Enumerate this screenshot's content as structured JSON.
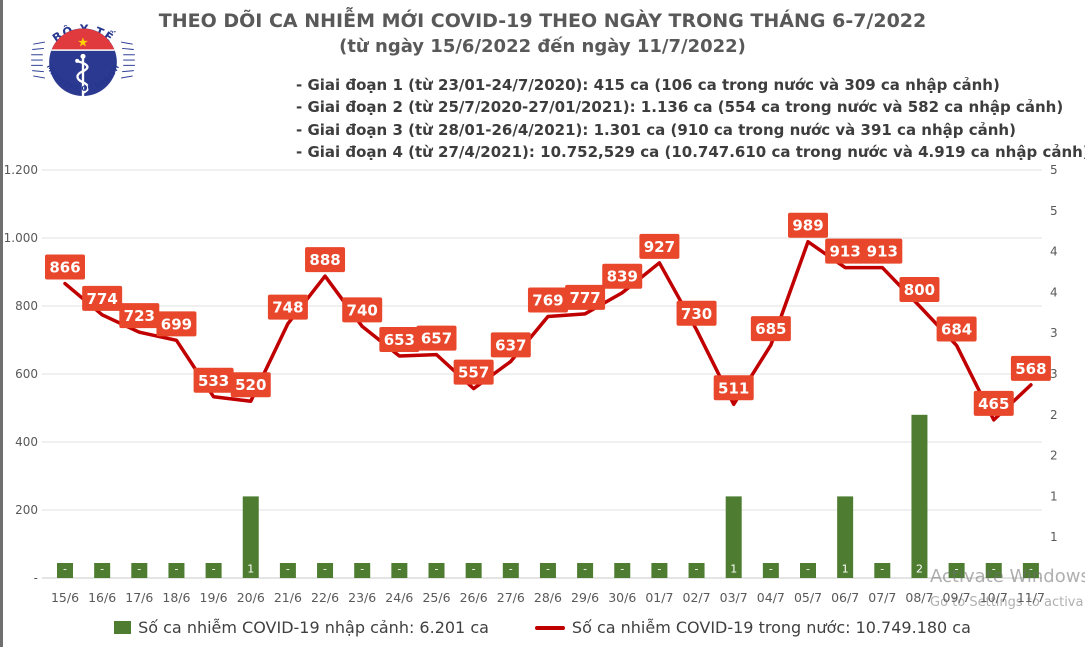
{
  "logo": {
    "top_text": "BỘ Y TẾ",
    "bottom_text": "MINISTRY OF HEALTH"
  },
  "header": {
    "title": "THEO DÕI CA NHIỄM MỚI COVID-19 THEO NGÀY TRONG THÁNG 6-7/2022",
    "subtitle": "(từ ngày 15/6/2022 đến ngày 11/7/2022)",
    "stages": [
      "- Giai đoạn 1 (từ 23/01-24/7/2020): 415 ca (106 ca trong nước và 309 ca nhập cảnh)",
      "- Giai đoạn 2 (từ 25/7/2020-27/01/2021): 1.136 ca (554 ca trong nước và 582 ca nhập cảnh)",
      "- Giai đoạn 3 (từ 28/01-26/4/2021): 1.301 ca (910 ca trong nước và 391 ca nhập cảnh)",
      "- Giai đoạn 4 (từ 27/4/2021): 10.752,529 ca (10.747.610 ca trong nước và 4.919 ca nhập cảnh)"
    ]
  },
  "chart_data": {
    "type": "combo",
    "title": "THEO DÕI CA NHIỄM MỚI COVID-19 THEO NGÀY TRONG THÁNG 6-7/2022",
    "categories": [
      "15/6",
      "16/6",
      "17/6",
      "18/6",
      "19/6",
      "20/6",
      "21/6",
      "22/6",
      "23/6",
      "24/6",
      "25/6",
      "26/6",
      "27/6",
      "28/6",
      "29/6",
      "30/6",
      "01/7",
      "02/7",
      "03/7",
      "04/7",
      "05/7",
      "06/7",
      "07/7",
      "08/7",
      "09/7",
      "10/7",
      "11/7"
    ],
    "series": [
      {
        "name": "Số ca nhiễm COVID-19 trong nước",
        "type": "line",
        "axis": "left",
        "color": "#c00000",
        "values": [
          866,
          774,
          723,
          699,
          533,
          520,
          748,
          888,
          740,
          653,
          657,
          557,
          637,
          769,
          777,
          839,
          927,
          730,
          511,
          685,
          989,
          913,
          913,
          800,
          684,
          465,
          568
        ]
      },
      {
        "name": "Số ca nhiễm COVID-19 nhập cảnh",
        "type": "bar",
        "axis": "right",
        "color": "#4e7d32",
        "values": [
          0,
          0,
          0,
          0,
          0,
          1,
          0,
          0,
          0,
          0,
          0,
          0,
          0,
          0,
          0,
          0,
          0,
          0,
          1,
          0,
          0,
          1,
          0,
          2,
          0,
          0,
          0
        ],
        "labels": [
          "-",
          "-",
          "-",
          "-",
          "-",
          "1",
          "-",
          "-",
          "-",
          "-",
          "-",
          "-",
          "-",
          "-",
          "-",
          "-",
          "-",
          "-",
          "1",
          "-",
          "-",
          "1",
          "-",
          "2",
          "-",
          "-",
          "-"
        ]
      }
    ],
    "left_axis": {
      "min": 0,
      "max": 1200,
      "ticks": [
        "1.200",
        "1.000",
        "800",
        "600",
        "400",
        "200",
        "-"
      ]
    },
    "right_axis": {
      "min": 0,
      "max": 5,
      "ticks_top_down": [
        "5",
        "5",
        "4",
        "4",
        "3",
        "3",
        "2",
        "2",
        "1",
        "1"
      ]
    },
    "label_box_color": "#e8472b",
    "grid": true,
    "legend_position": "bottom"
  },
  "legend": [
    {
      "swatch": "bar",
      "color": "#4e7d32",
      "label": "Số ca nhiễm COVID-19 nhập cảnh: 6.201 ca"
    },
    {
      "swatch": "line",
      "color": "#c00000",
      "label": "Số ca nhiễm COVID-19 trong nước: 10.749.180 ca"
    }
  ],
  "watermark": {
    "line1": "Activate Windows",
    "line2": "Go to Settings to activa"
  }
}
